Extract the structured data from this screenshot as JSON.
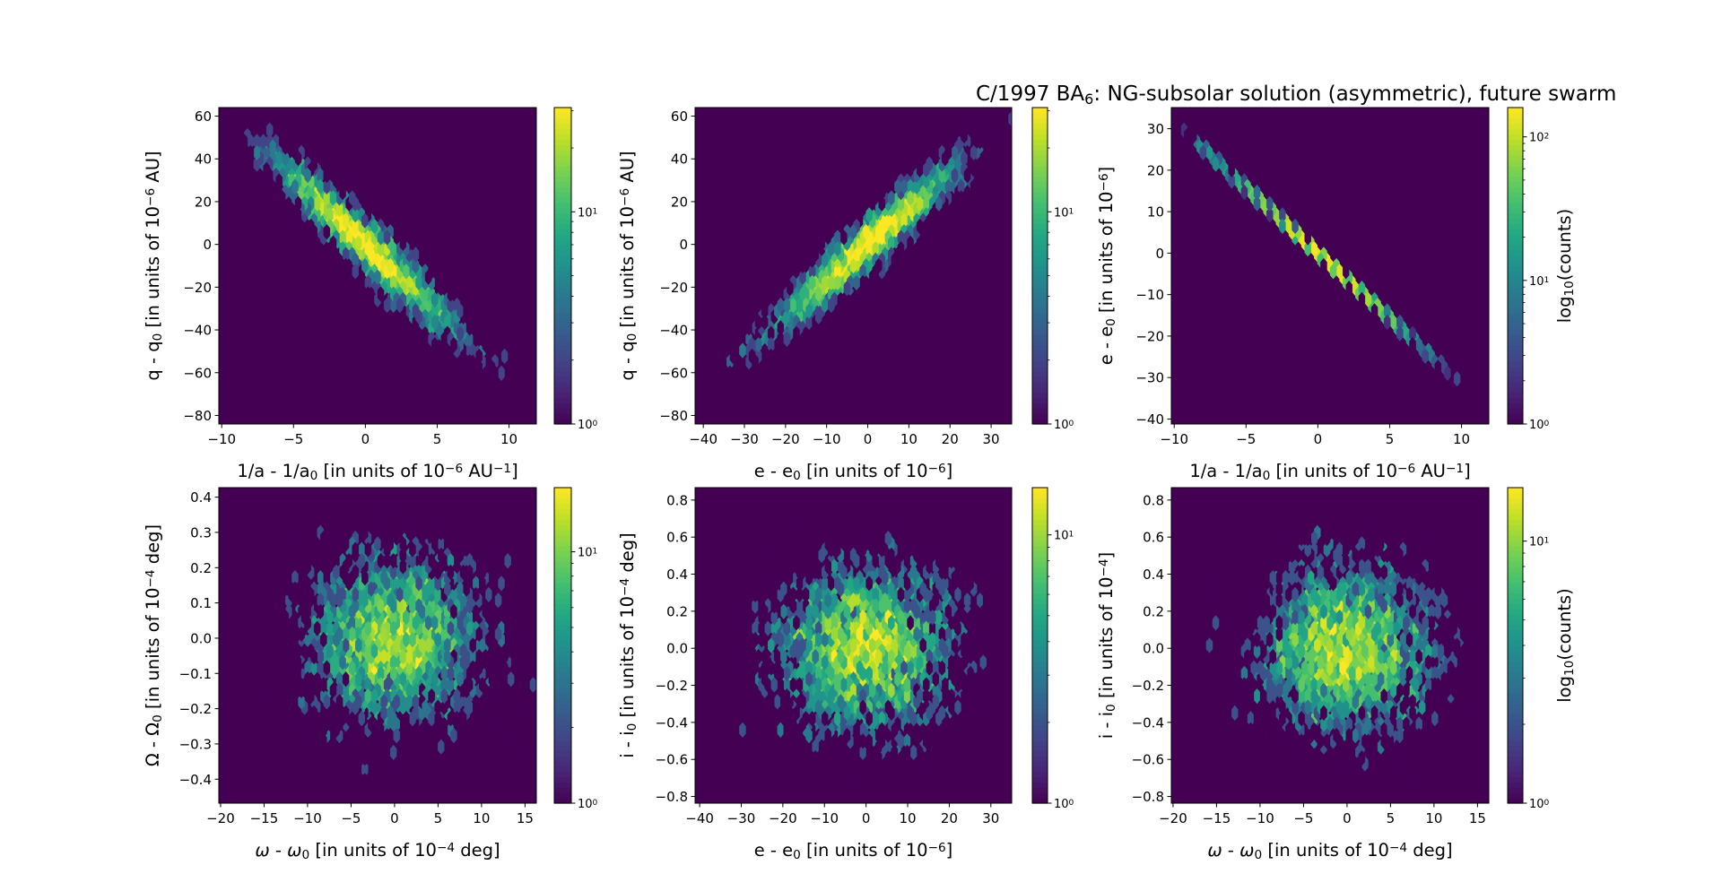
{
  "title": {
    "parts": [
      {
        "t": "C/1997 BA"
      },
      {
        "t": "6",
        "sub": true
      },
      {
        "t": ": NG-subsolar solution (asymmetric), future swarm"
      }
    ]
  },
  "chart_data": [
    {
      "type": "heatmap",
      "subtype": "hexbin",
      "name": "q-vs-inv-a",
      "xlim": [
        -10.2,
        11.9
      ],
      "ylim": [
        -84,
        64
      ],
      "xticks": [
        {
          "v": -10,
          "l": "−10"
        },
        {
          "v": -5,
          "l": "−5"
        },
        {
          "v": 0,
          "l": "0"
        },
        {
          "v": 5,
          "l": "5"
        },
        {
          "v": 10,
          "l": "10"
        }
      ],
      "yticks": [
        {
          "v": -80,
          "l": "−80"
        },
        {
          "v": -60,
          "l": "−60"
        },
        {
          "v": -40,
          "l": "−40"
        },
        {
          "v": -20,
          "l": "−20"
        },
        {
          "v": 0,
          "l": "0"
        },
        {
          "v": 20,
          "l": "20"
        },
        {
          "v": 40,
          "l": "40"
        },
        {
          "v": 60,
          "l": "60"
        }
      ],
      "xlabel": [
        {
          "t": "1/a - 1/a"
        },
        {
          "t": "0",
          "sub": true
        },
        {
          "t": " [in units of 10"
        },
        {
          "t": "−6",
          "sup": true
        },
        {
          "t": " AU"
        },
        {
          "t": "−1",
          "sup": true
        },
        {
          "t": "]"
        }
      ],
      "ylabel": [
        {
          "t": "q - q"
        },
        {
          "t": "0",
          "sub": true
        },
        {
          "t": " [in units of 10"
        },
        {
          "t": "−6",
          "sup": true
        },
        {
          "t": " AU]"
        }
      ],
      "colorbar": {
        "scale": "log",
        "vmin": 1,
        "vmax": 31,
        "ticks": [
          {
            "v": 1,
            "base": "10",
            "exp": "0"
          },
          {
            "v": 10,
            "base": "10",
            "exp": "1"
          }
        ],
        "label": ""
      },
      "distribution": {
        "n_samples": 3500,
        "x_mean": 0,
        "x_sd": 3.2,
        "slope": -6.3,
        "resid_sd": 6
      }
    },
    {
      "type": "heatmap",
      "subtype": "hexbin",
      "name": "q-vs-e",
      "xlim": [
        -42,
        35
      ],
      "ylim": [
        -84,
        64
      ],
      "xticks": [
        {
          "v": -40,
          "l": "−40"
        },
        {
          "v": -30,
          "l": "−30"
        },
        {
          "v": -20,
          "l": "−20"
        },
        {
          "v": -10,
          "l": "−10"
        },
        {
          "v": 0,
          "l": "0"
        },
        {
          "v": 10,
          "l": "10"
        },
        {
          "v": 20,
          "l": "20"
        },
        {
          "v": 30,
          "l": "30"
        }
      ],
      "yticks": [
        {
          "v": -80,
          "l": "−80"
        },
        {
          "v": -60,
          "l": "−60"
        },
        {
          "v": -40,
          "l": "−40"
        },
        {
          "v": -20,
          "l": "−20"
        },
        {
          "v": 0,
          "l": "0"
        },
        {
          "v": 20,
          "l": "20"
        },
        {
          "v": 40,
          "l": "40"
        },
        {
          "v": 60,
          "l": "60"
        }
      ],
      "xlabel": [
        {
          "t": "e - e"
        },
        {
          "t": "0",
          "sub": true
        },
        {
          "t": " [in units of 10"
        },
        {
          "t": "−6",
          "sup": true
        },
        {
          "t": "]"
        }
      ],
      "ylabel": [
        {
          "t": "q - q"
        },
        {
          "t": "0",
          "sub": true
        },
        {
          "t": " [in units of 10"
        },
        {
          "t": "−6",
          "sup": true
        },
        {
          "t": " AU]"
        }
      ],
      "colorbar": {
        "scale": "log",
        "vmin": 1,
        "vmax": 31,
        "ticks": [
          {
            "v": 1,
            "base": "10",
            "exp": "0"
          },
          {
            "v": 10,
            "base": "10",
            "exp": "1"
          }
        ],
        "label": ""
      },
      "distribution": {
        "n_samples": 3500,
        "x_mean": 0,
        "x_sd": 11,
        "slope": 1.65,
        "resid_sd": 6
      }
    },
    {
      "type": "heatmap",
      "subtype": "hexbin",
      "name": "e-vs-inv-a",
      "xlim": [
        -10.2,
        11.9
      ],
      "ylim": [
        -41.2,
        35.1
      ],
      "xticks": [
        {
          "v": -10,
          "l": "−10"
        },
        {
          "v": -5,
          "l": "−5"
        },
        {
          "v": 0,
          "l": "0"
        },
        {
          "v": 5,
          "l": "5"
        },
        {
          "v": 10,
          "l": "10"
        }
      ],
      "yticks": [
        {
          "v": -40,
          "l": "−40"
        },
        {
          "v": -30,
          "l": "−30"
        },
        {
          "v": -20,
          "l": "−20"
        },
        {
          "v": -10,
          "l": "−10"
        },
        {
          "v": 0,
          "l": "0"
        },
        {
          "v": 10,
          "l": "10"
        },
        {
          "v": 20,
          "l": "20"
        },
        {
          "v": 30,
          "l": "30"
        }
      ],
      "xlabel": [
        {
          "t": "1/a - 1/a"
        },
        {
          "t": "0",
          "sub": true
        },
        {
          "t": " [in units of 10"
        },
        {
          "t": "−6",
          "sup": true
        },
        {
          "t": " AU"
        },
        {
          "t": "−1",
          "sup": true
        },
        {
          "t": "]"
        }
      ],
      "ylabel": [
        {
          "t": "e - e"
        },
        {
          "t": "0",
          "sub": true
        },
        {
          "t": " [in units of 10"
        },
        {
          "t": "−6",
          "sup": true
        },
        {
          "t": "]"
        }
      ],
      "colorbar": {
        "scale": "log",
        "vmin": 1,
        "vmax": 160,
        "ticks": [
          {
            "v": 1,
            "base": "10",
            "exp": "0"
          },
          {
            "v": 10,
            "base": "10",
            "exp": "1"
          },
          {
            "v": 100,
            "base": "10",
            "exp": "2"
          }
        ],
        "label": [
          {
            "t": "log"
          },
          {
            "t": "10",
            "sub": true
          },
          {
            "t": "(counts)"
          }
        ]
      },
      "distribution": {
        "n_samples": 3500,
        "x_mean": 0,
        "x_sd": 3.2,
        "slope": -3.15,
        "resid_sd": 0.25
      }
    },
    {
      "type": "heatmap",
      "subtype": "hexbin",
      "name": "Omega-vs-omega",
      "xlim": [
        -20.2,
        16.3
      ],
      "ylim": [
        -0.468,
        0.427
      ],
      "xticks": [
        {
          "v": -20,
          "l": "−20"
        },
        {
          "v": -15,
          "l": "−15"
        },
        {
          "v": -10,
          "l": "−10"
        },
        {
          "v": -5,
          "l": "−5"
        },
        {
          "v": 0,
          "l": "0"
        },
        {
          "v": 5,
          "l": "5"
        },
        {
          "v": 10,
          "l": "10"
        },
        {
          "v": 15,
          "l": "15"
        }
      ],
      "yticks": [
        {
          "v": -0.4,
          "l": "−0.4"
        },
        {
          "v": -0.3,
          "l": "−0.3"
        },
        {
          "v": -0.2,
          "l": "−0.2"
        },
        {
          "v": -0.1,
          "l": "−0.1"
        },
        {
          "v": 0,
          "l": "0.0"
        },
        {
          "v": 0.1,
          "l": "0.1"
        },
        {
          "v": 0.2,
          "l": "0.2"
        },
        {
          "v": 0.3,
          "l": "0.3"
        },
        {
          "v": 0.4,
          "l": "0.4"
        }
      ],
      "xlabel": [
        {
          "t": "ω",
          "it": true
        },
        {
          "t": " - "
        },
        {
          "t": "ω",
          "it": true
        },
        {
          "t": "0",
          "sub": true
        },
        {
          "t": " [in units of 10"
        },
        {
          "t": "−4",
          "sup": true
        },
        {
          "t": " deg]"
        }
      ],
      "ylabel": [
        {
          "t": "Ω - Ω"
        },
        {
          "t": "0",
          "sub": true
        },
        {
          "t": " [in units of 10"
        },
        {
          "t": "−4",
          "sup": true
        },
        {
          "t": " deg]"
        }
      ],
      "colorbar": {
        "scale": "log",
        "vmin": 1,
        "vmax": 18,
        "ticks": [
          {
            "v": 1,
            "base": "10",
            "exp": "0"
          },
          {
            "v": 10,
            "base": "10",
            "exp": "1"
          }
        ],
        "label": ""
      },
      "distribution": {
        "n_samples": 4000,
        "x_mean": 0,
        "x_sd": 5,
        "slope": 0,
        "resid_sd": 0.12
      }
    },
    {
      "type": "heatmap",
      "subtype": "hexbin",
      "name": "i-vs-e",
      "xlim": [
        -41.1,
        35
      ],
      "ylim": [
        -0.836,
        0.867
      ],
      "xticks": [
        {
          "v": -40,
          "l": "−40"
        },
        {
          "v": -30,
          "l": "−30"
        },
        {
          "v": -20,
          "l": "−20"
        },
        {
          "v": -10,
          "l": "−10"
        },
        {
          "v": 0,
          "l": "0"
        },
        {
          "v": 10,
          "l": "10"
        },
        {
          "v": 20,
          "l": "20"
        },
        {
          "v": 30,
          "l": "30"
        }
      ],
      "yticks": [
        {
          "v": -0.8,
          "l": "−0.8"
        },
        {
          "v": -0.6,
          "l": "−0.6"
        },
        {
          "v": -0.4,
          "l": "−0.4"
        },
        {
          "v": -0.2,
          "l": "−0.2"
        },
        {
          "v": 0,
          "l": "0.0"
        },
        {
          "v": 0.2,
          "l": "0.2"
        },
        {
          "v": 0.4,
          "l": "0.4"
        },
        {
          "v": 0.6,
          "l": "0.6"
        },
        {
          "v": 0.8,
          "l": "0.8"
        }
      ],
      "xlabel": [
        {
          "t": "e - e"
        },
        {
          "t": "0",
          "sub": true
        },
        {
          "t": " [in units of 10"
        },
        {
          "t": "−6",
          "sup": true
        },
        {
          "t": "]"
        }
      ],
      "ylabel": [
        {
          "t": "i - i"
        },
        {
          "t": "0",
          "sub": true
        },
        {
          "t": " [in units of 10"
        },
        {
          "t": "−4",
          "sup": true
        },
        {
          "t": " deg]"
        }
      ],
      "colorbar": {
        "scale": "log",
        "vmin": 1,
        "vmax": 15,
        "ticks": [
          {
            "v": 1,
            "base": "10",
            "exp": "0"
          },
          {
            "v": 10,
            "base": "10",
            "exp": "1"
          }
        ],
        "label": ""
      },
      "distribution": {
        "n_samples": 4000,
        "x_mean": 0,
        "x_sd": 11,
        "slope": 0,
        "resid_sd": 0.23
      }
    },
    {
      "type": "heatmap",
      "subtype": "hexbin",
      "name": "i-vs-omega",
      "xlim": [
        -20.2,
        16.3
      ],
      "ylim": [
        -0.836,
        0.867
      ],
      "xticks": [
        {
          "v": -20,
          "l": "−20"
        },
        {
          "v": -15,
          "l": "−15"
        },
        {
          "v": -10,
          "l": "−10"
        },
        {
          "v": -5,
          "l": "−5"
        },
        {
          "v": 0,
          "l": "0"
        },
        {
          "v": 5,
          "l": "5"
        },
        {
          "v": 10,
          "l": "10"
        },
        {
          "v": 15,
          "l": "15"
        }
      ],
      "yticks": [
        {
          "v": -0.8,
          "l": "−0.8"
        },
        {
          "v": -0.6,
          "l": "−0.6"
        },
        {
          "v": -0.4,
          "l": "−0.4"
        },
        {
          "v": -0.2,
          "l": "−0.2"
        },
        {
          "v": 0,
          "l": "0.0"
        },
        {
          "v": 0.2,
          "l": "0.2"
        },
        {
          "v": 0.4,
          "l": "0.4"
        },
        {
          "v": 0.6,
          "l": "0.6"
        },
        {
          "v": 0.8,
          "l": "0.8"
        }
      ],
      "xlabel": [
        {
          "t": "ω",
          "it": true
        },
        {
          "t": " - "
        },
        {
          "t": "ω",
          "it": true
        },
        {
          "t": "0",
          "sub": true
        },
        {
          "t": " [in units of 10"
        },
        {
          "t": "−4",
          "sup": true
        },
        {
          "t": " deg]"
        }
      ],
      "ylabel": [
        {
          "t": "i - i"
        },
        {
          "t": "0",
          "sub": true
        },
        {
          "t": " [in units of 10"
        },
        {
          "t": "−4",
          "sup": true
        },
        {
          "t": "]"
        }
      ],
      "colorbar": {
        "scale": "log",
        "vmin": 1,
        "vmax": 16,
        "ticks": [
          {
            "v": 1,
            "base": "10",
            "exp": "0"
          },
          {
            "v": 10,
            "base": "10",
            "exp": "1"
          }
        ],
        "label": [
          {
            "t": "log"
          },
          {
            "t": "10",
            "sub": true
          },
          {
            "t": "(counts)"
          }
        ]
      },
      "distribution": {
        "n_samples": 4000,
        "x_mean": 0,
        "x_sd": 5,
        "slope": 0,
        "resid_sd": 0.23
      }
    }
  ]
}
